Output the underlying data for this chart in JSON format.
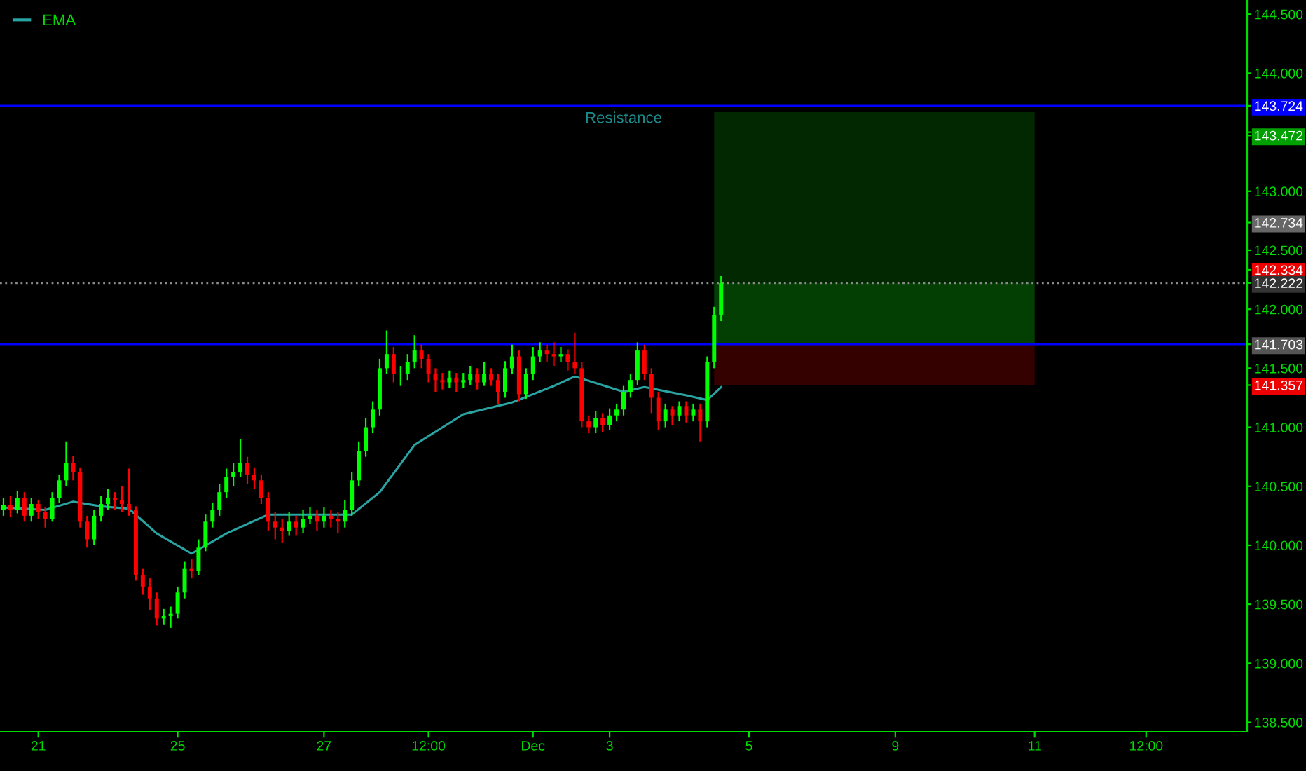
{
  "chart_data": {
    "type": "candlestick",
    "categories": [
      null,
      null,
      null,
      null,
      null,
      "21",
      null,
      null,
      null,
      null,
      null,
      null,
      null,
      null,
      null,
      null,
      null,
      null,
      null,
      null,
      null,
      null,
      null,
      null,
      null,
      "25",
      null,
      null,
      null,
      null,
      null,
      null,
      null,
      null,
      null,
      null,
      null,
      null,
      null,
      null,
      null,
      null,
      null,
      null,
      null,
      null,
      "27",
      null,
      null,
      null,
      null,
      null,
      null,
      null,
      null,
      null,
      null,
      null,
      null,
      null,
      null,
      "12:00",
      null,
      null,
      null,
      null,
      null,
      null,
      null,
      null,
      null,
      null,
      null,
      null,
      null,
      null,
      "Dec",
      null,
      null,
      null,
      null,
      null,
      null,
      null,
      null,
      null,
      null,
      "3",
      null,
      null,
      null,
      null,
      null,
      null,
      null,
      null,
      null,
      null,
      null,
      null,
      null,
      null,
      null,
      null,
      null,
      null,
      null,
      "5",
      null,
      null,
      null,
      null,
      null,
      null,
      null,
      null,
      null,
      null,
      null,
      null,
      null,
      null,
      null,
      null,
      null,
      null,
      null,
      null,
      "9",
      null,
      null,
      null,
      null,
      null,
      null,
      null,
      null,
      null,
      null,
      null,
      null,
      null,
      null,
      null,
      null,
      null,
      null,
      null,
      "11",
      null,
      null,
      null,
      null,
      null,
      null,
      null,
      null,
      null,
      null,
      null,
      null,
      null,
      null,
      null,
      "12:00",
      null,
      null,
      null,
      null,
      null,
      null,
      null,
      null,
      null,
      null,
      null,
      null,
      null,
      null
    ],
    "ohlc": [
      [
        140.3,
        140.4,
        140.25,
        140.34
      ],
      [
        140.34,
        140.42,
        140.24,
        140.3
      ],
      [
        140.3,
        140.46,
        140.27,
        140.4
      ],
      [
        140.4,
        140.45,
        140.2,
        140.25
      ],
      [
        140.25,
        140.4,
        140.2,
        140.35
      ],
      [
        140.35,
        140.38,
        140.22,
        140.28
      ],
      [
        140.28,
        140.32,
        140.15,
        140.22
      ],
      [
        140.22,
        140.45,
        140.2,
        140.4
      ],
      [
        140.4,
        140.6,
        140.36,
        140.55
      ],
      [
        140.55,
        140.88,
        140.5,
        140.7
      ],
      [
        140.7,
        140.76,
        140.55,
        140.62
      ],
      [
        140.62,
        140.66,
        140.15,
        140.2
      ],
      [
        140.2,
        140.25,
        139.98,
        140.05
      ],
      [
        140.05,
        140.3,
        140.0,
        140.25
      ],
      [
        140.25,
        140.42,
        140.2,
        140.35
      ],
      [
        140.35,
        140.48,
        140.3,
        140.4
      ],
      [
        140.4,
        140.45,
        140.3,
        140.38
      ],
      [
        140.38,
        140.5,
        140.28,
        140.35
      ],
      [
        140.35,
        140.65,
        140.25,
        140.3
      ],
      [
        140.3,
        140.33,
        139.7,
        139.75
      ],
      [
        139.75,
        139.8,
        139.58,
        139.65
      ],
      [
        139.65,
        139.72,
        139.45,
        139.55
      ],
      [
        139.55,
        139.6,
        139.32,
        139.38
      ],
      [
        139.38,
        139.46,
        139.33,
        139.4
      ],
      [
        139.4,
        139.48,
        139.3,
        139.42
      ],
      [
        139.42,
        139.65,
        139.38,
        139.6
      ],
      [
        139.6,
        139.86,
        139.55,
        139.8
      ],
      [
        139.8,
        139.88,
        139.72,
        139.78
      ],
      [
        139.78,
        140.05,
        139.75,
        139.98
      ],
      [
        139.98,
        140.26,
        139.95,
        140.2
      ],
      [
        140.2,
        140.36,
        140.15,
        140.3
      ],
      [
        140.3,
        140.52,
        140.25,
        140.45
      ],
      [
        140.45,
        140.65,
        140.4,
        140.58
      ],
      [
        140.58,
        140.7,
        140.5,
        140.62
      ],
      [
        140.62,
        140.9,
        140.58,
        140.7
      ],
      [
        140.7,
        140.75,
        140.52,
        140.6
      ],
      [
        140.6,
        140.66,
        140.48,
        140.55
      ],
      [
        140.55,
        140.6,
        140.35,
        140.4
      ],
      [
        140.4,
        140.45,
        140.12,
        140.2
      ],
      [
        140.2,
        140.28,
        140.05,
        140.15
      ],
      [
        140.15,
        140.22,
        140.02,
        140.12
      ],
      [
        140.12,
        140.28,
        140.08,
        140.2
      ],
      [
        140.2,
        140.25,
        140.08,
        140.15
      ],
      [
        140.15,
        140.3,
        140.1,
        140.22
      ],
      [
        140.22,
        140.32,
        140.18,
        140.25
      ],
      [
        140.25,
        140.3,
        140.12,
        140.2
      ],
      [
        140.2,
        140.32,
        140.15,
        140.25
      ],
      [
        140.25,
        140.3,
        140.15,
        140.22
      ],
      [
        140.22,
        140.28,
        140.1,
        140.2
      ],
      [
        140.2,
        140.38,
        140.15,
        140.3
      ],
      [
        140.3,
        140.62,
        140.25,
        140.55
      ],
      [
        140.55,
        140.88,
        140.5,
        140.8
      ],
      [
        140.8,
        141.08,
        140.75,
        141.0
      ],
      [
        141.0,
        141.22,
        140.95,
        141.15
      ],
      [
        141.15,
        141.58,
        141.1,
        141.5
      ],
      [
        141.5,
        141.82,
        141.45,
        141.62
      ],
      [
        141.62,
        141.68,
        141.38,
        141.45
      ],
      [
        141.45,
        141.52,
        141.35,
        141.45
      ],
      [
        141.45,
        141.62,
        141.4,
        141.55
      ],
      [
        141.55,
        141.78,
        141.5,
        141.65
      ],
      [
        141.65,
        141.7,
        141.5,
        141.58
      ],
      [
        141.58,
        141.62,
        141.38,
        141.45
      ],
      [
        141.45,
        141.5,
        141.3,
        141.4
      ],
      [
        141.4,
        141.46,
        141.32,
        141.38
      ],
      [
        141.38,
        141.48,
        141.33,
        141.42
      ],
      [
        141.42,
        141.46,
        141.3,
        141.38
      ],
      [
        141.38,
        141.46,
        141.33,
        141.4
      ],
      [
        141.4,
        141.52,
        141.36,
        141.45
      ],
      [
        141.45,
        141.5,
        141.32,
        141.38
      ],
      [
        141.38,
        141.55,
        141.35,
        141.45
      ],
      [
        141.45,
        141.5,
        141.35,
        141.4
      ],
      [
        141.4,
        141.45,
        141.2,
        141.3
      ],
      [
        141.3,
        141.56,
        141.25,
        141.5
      ],
      [
        141.5,
        141.7,
        141.45,
        141.6
      ],
      [
        141.6,
        141.65,
        141.22,
        141.28
      ],
      [
        141.28,
        141.5,
        141.24,
        141.45
      ],
      [
        141.45,
        141.68,
        141.4,
        141.6
      ],
      [
        141.6,
        141.72,
        141.55,
        141.65
      ],
      [
        141.65,
        141.7,
        141.55,
        141.62
      ],
      [
        141.62,
        141.72,
        141.52,
        141.6
      ],
      [
        141.6,
        141.68,
        141.55,
        141.62
      ],
      [
        141.62,
        141.66,
        141.48,
        141.55
      ],
      [
        141.55,
        141.8,
        141.45,
        141.5
      ],
      [
        141.5,
        141.55,
        141.0,
        141.05
      ],
      [
        141.05,
        141.1,
        140.95,
        141.0
      ],
      [
        141.0,
        141.14,
        140.95,
        141.08
      ],
      [
        141.08,
        141.12,
        140.96,
        141.02
      ],
      [
        141.02,
        141.16,
        140.98,
        141.1
      ],
      [
        141.1,
        141.2,
        141.05,
        141.15
      ],
      [
        141.15,
        141.35,
        141.1,
        141.3
      ],
      [
        141.3,
        141.45,
        141.25,
        141.4
      ],
      [
        141.4,
        141.72,
        141.36,
        141.65
      ],
      [
        141.65,
        141.7,
        141.4,
        141.45
      ],
      [
        141.45,
        141.5,
        141.12,
        141.25
      ],
      [
        141.25,
        141.3,
        140.98,
        141.05
      ],
      [
        141.05,
        141.2,
        141.0,
        141.15
      ],
      [
        141.15,
        141.18,
        141.02,
        141.1
      ],
      [
        141.1,
        141.22,
        141.05,
        141.18
      ],
      [
        141.18,
        141.22,
        141.04,
        141.1
      ],
      [
        141.1,
        141.2,
        141.05,
        141.15
      ],
      [
        141.15,
        141.2,
        140.88,
        141.05
      ],
      [
        141.05,
        141.6,
        141.0,
        141.55
      ],
      [
        141.55,
        142.02,
        141.5,
        141.95
      ],
      [
        141.95,
        142.28,
        141.9,
        142.22
      ],
      null,
      null,
      null,
      null,
      null,
      null,
      null,
      null,
      null,
      null,
      null,
      null,
      null,
      null,
      null,
      null,
      null,
      null,
      null,
      null,
      null,
      null,
      null,
      null,
      null,
      null,
      null,
      null,
      null,
      null,
      null,
      null,
      null,
      null,
      null,
      null,
      null,
      null,
      null,
      null,
      null,
      null,
      null,
      null,
      null,
      null,
      null,
      null,
      null,
      null,
      null,
      null,
      null,
      null,
      null,
      null,
      null,
      null,
      null,
      null,
      null,
      null,
      null,
      null,
      null,
      null,
      null,
      null,
      null,
      null,
      null,
      null,
      null,
      null,
      null
    ],
    "series": [
      {
        "name": "EMA",
        "type": "line",
        "color": "#2aa3a3",
        "values": [
          140.32,
          null,
          null,
          null,
          null,
          null,
          140.3,
          null,
          null,
          null,
          140.37,
          null,
          null,
          null,
          140.33,
          null,
          null,
          null,
          140.31,
          null,
          null,
          null,
          140.1,
          null,
          null,
          null,
          null,
          139.93,
          null,
          null,
          null,
          null,
          140.1,
          null,
          null,
          null,
          null,
          null,
          140.26,
          null,
          null,
          null,
          null,
          null,
          140.26,
          null,
          null,
          null,
          null,
          null,
          140.26,
          null,
          null,
          null,
          140.45,
          null,
          null,
          null,
          null,
          140.85,
          null,
          null,
          null,
          null,
          null,
          null,
          141.11,
          null,
          null,
          null,
          null,
          null,
          null,
          141.21,
          null,
          null,
          null,
          null,
          null,
          141.35,
          null,
          null,
          141.43,
          null,
          null,
          null,
          null,
          null,
          null,
          141.3,
          null,
          null,
          141.34,
          null,
          null,
          null,
          null,
          null,
          141.27,
          null,
          null,
          141.23,
          null,
          141.34,
          null,
          null,
          null,
          null,
          null,
          null,
          null,
          null,
          null,
          null,
          null,
          null,
          null,
          null,
          null,
          null,
          null,
          null,
          null,
          null,
          null,
          null,
          null,
          null,
          null,
          null,
          null,
          null,
          null,
          null,
          null,
          null,
          null,
          null,
          null,
          null,
          null,
          null,
          null,
          null,
          null,
          null,
          null,
          null,
          null,
          null,
          null,
          null,
          null,
          null,
          null,
          null,
          null,
          null,
          null,
          null,
          null,
          null,
          null,
          null,
          null,
          null,
          null,
          null,
          null,
          null,
          null,
          null,
          null,
          null,
          null,
          null,
          null,
          null,
          null
        ]
      }
    ],
    "ylim": [
      138.42,
      144.62
    ],
    "yticks": [
      {
        "value": 138.5,
        "label": "138.500"
      },
      {
        "value": 139,
        "label": "139.000"
      },
      {
        "value": 139.5,
        "label": "139.500"
      },
      {
        "value": 140,
        "label": "140.000"
      },
      {
        "value": 140.5,
        "label": "140.500"
      },
      {
        "value": 141,
        "label": "141.000"
      },
      {
        "value": 141.5,
        "label": "141.500"
      },
      {
        "value": 142,
        "label": "142.000"
      },
      {
        "value": 142.5,
        "label": "142.500"
      },
      {
        "value": 143,
        "label": "143.000"
      },
      {
        "value": 143.5,
        "label": null
      },
      {
        "value": 144,
        "label": "144.000"
      },
      {
        "value": 144.5,
        "label": "144.500"
      },
      {
        "value": 143.724,
        "label": "143.724"
      },
      {
        "value": 143.472,
        "label": "143.472"
      },
      {
        "value": 142.734,
        "label": "142.734"
      },
      {
        "value": 142.334,
        "label": "142.334"
      },
      {
        "value": 142.222,
        "label": "142.222"
      },
      {
        "value": 141.703,
        "label": "141.703"
      },
      {
        "value": 141.357,
        "label": "141.357"
      }
    ],
    "ref_lines": [
      {
        "axis": "y",
        "value": 143.724,
        "label": "Resistance",
        "color": "#0000ff",
        "line_style": "solid"
      },
      {
        "axis": "y",
        "value": 142.222,
        "label": null,
        "color": "#8a8a8a",
        "line_style": "dotted"
      },
      {
        "axis": "y",
        "value": 141.703,
        "label": null,
        "color": "#0000ff",
        "line_style": "solid"
      }
    ],
    "bands": [
      {
        "axis": "y",
        "from": 142.222,
        "to": 143.67,
        "label": null,
        "color": "#022802"
      },
      {
        "axis": "y",
        "from": 141.703,
        "to": 142.222,
        "label": null,
        "color": "#033f03"
      },
      {
        "axis": "y",
        "from": 141.357,
        "to": 141.703,
        "label": null,
        "color": "#350000"
      }
    ],
    "legend": "top left",
    "grid": false
  }
}
